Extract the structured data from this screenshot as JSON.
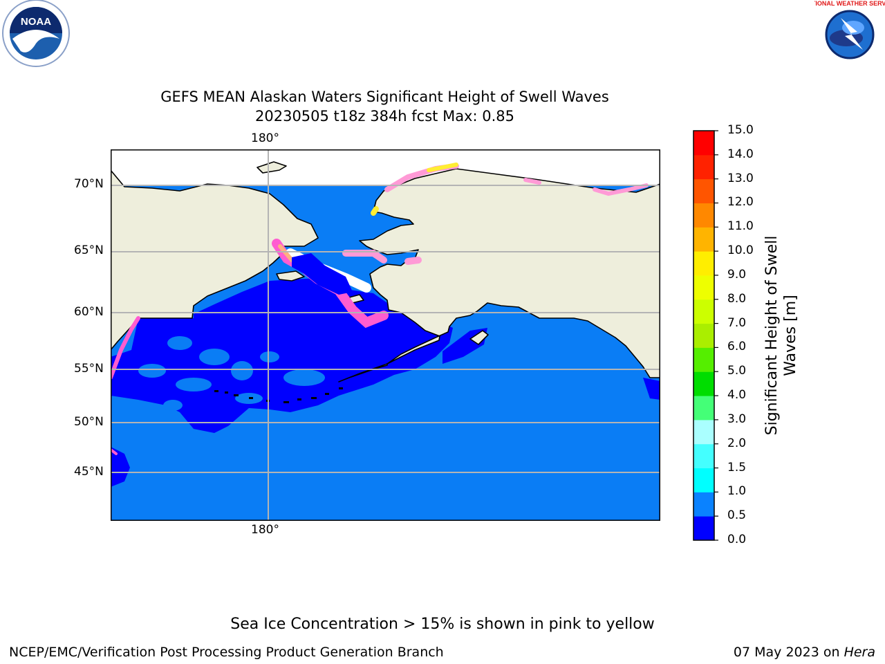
{
  "header": {
    "noaa_logo_text": "NOAA",
    "noaa_ring_text": "NATIONAL OCEANIC AND ATMOSPHERIC ADMINISTRATION · U.S. DEPARTMENT OF COMMERCE",
    "nws_ring_text": "NATIONAL WEATHER SERVICE"
  },
  "title": {
    "line1": "GEFS MEAN Alaskan Waters Significant Height of Swell Waves",
    "line2": "20230505 t18z 384h fcst   Max: 0.85"
  },
  "map": {
    "lon_labels": {
      "top": "180°",
      "bottom": "180°"
    },
    "lat_labels": [
      "70°N",
      "65°N",
      "60°N",
      "55°N",
      "50°N",
      "45°N"
    ],
    "colors": {
      "land": "#eeeedc",
      "ocean_low": "#0000fe",
      "ocean_mid": "#0a7df5",
      "ice": "#ff5dd0",
      "grid": "#b4b4b4"
    }
  },
  "colorbar": {
    "title_line1": "Significant Height of Swell",
    "title_line2": "Waves [m]",
    "tick_labels": [
      "15.0",
      "14.0",
      "13.0",
      "12.0",
      "11.0",
      "10.0",
      "9.0",
      "8.0",
      "7.0",
      "6.0",
      "5.0",
      "4.0",
      "3.0",
      "2.0",
      "1.5",
      "1.0",
      "0.5",
      "0.0"
    ],
    "colors_bottom_to_top": [
      "#0000ff",
      "#0a82ff",
      "#00ffff",
      "#44ffff",
      "#aaffff",
      "#44ff77",
      "#00dd00",
      "#55ee00",
      "#aaee00",
      "#ccff00",
      "#eeff00",
      "#ffee00",
      "#ffb400",
      "#ff8800",
      "#ff5500",
      "#ff2200",
      "#ff0000"
    ]
  },
  "footnote": "Sea Ice Concentration > 15% is shown in pink to yellow",
  "footer": {
    "left": "NCEP/EMC/Verification Post Processing Product Generation Branch",
    "right_date": "07 May 2023 on ",
    "right_machine": "Hera"
  }
}
